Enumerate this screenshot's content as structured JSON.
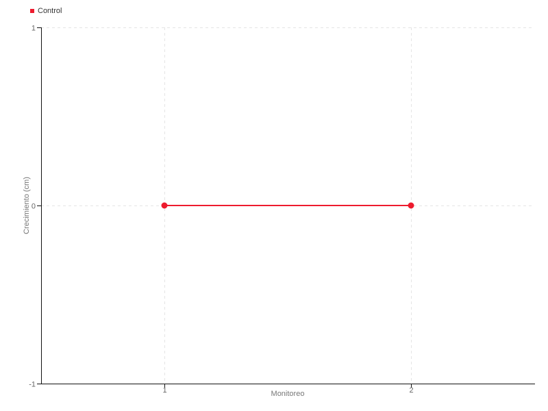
{
  "chart_data": {
    "type": "line",
    "title": "",
    "xlabel": "Monitoreo",
    "ylabel": "Crecimiento (cm)",
    "xlim": [
      0.5,
      2.5
    ],
    "ylim": [
      -1,
      1
    ],
    "xticks": [
      1,
      2
    ],
    "yticks": [
      1,
      0,
      -1
    ],
    "grid": true,
    "legend_position": "top-left",
    "series": [
      {
        "name": "Control",
        "color": "#ed1b2e",
        "x": [
          1,
          2
        ],
        "y": [
          0,
          0
        ]
      }
    ]
  },
  "colors": {
    "grid_line": "#e4e4e4",
    "axis_line": "#111111",
    "tick_label": "#666666",
    "axis_label": "#777777",
    "legend_text": "#333333"
  }
}
